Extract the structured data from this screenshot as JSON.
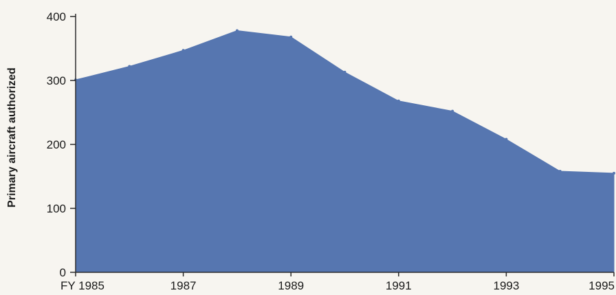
{
  "chart_data": {
    "type": "area",
    "title": "",
    "xlabel": "",
    "ylabel": "Primary aircraft authorized",
    "x": [
      1985,
      1986,
      1987,
      1988,
      1989,
      1990,
      1991,
      1992,
      1993,
      1994,
      1995
    ],
    "series": [
      {
        "values": [
          301,
          322,
          347,
          378,
          368,
          313,
          268,
          252,
          208,
          158,
          155
        ]
      }
    ],
    "xlim": [
      1985,
      1995
    ],
    "ylim": [
      0,
      400
    ],
    "x_ticks": [
      1985,
      1987,
      1989,
      1991,
      1993,
      1995
    ],
    "x_tick_labels": [
      "FY 1985",
      "1987",
      "1989",
      "1991",
      "1993",
      "1995"
    ],
    "y_ticks": [
      0,
      100,
      200,
      300,
      400
    ],
    "y_tick_labels": [
      "0",
      "100",
      "200",
      "300",
      "400"
    ],
    "grid": false,
    "legend": "none",
    "colors": {
      "area": "#5676b0",
      "axis": "#2a2a2a",
      "text": "#1a1a1a",
      "background": "#f7f5f0"
    }
  }
}
